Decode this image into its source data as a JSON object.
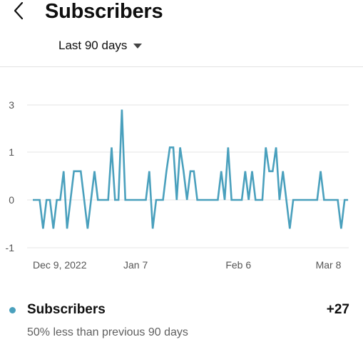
{
  "header": {
    "title": "Subscribers"
  },
  "range_select": {
    "label": "Last 90 days"
  },
  "summary": {
    "metric_name": "Subscribers",
    "total": "+27",
    "comparison": "50% less than previous 90 days"
  },
  "colors": {
    "series": "#4aa0bd",
    "grid": "#e5e5e5",
    "axis_text": "#555555"
  },
  "icons": {
    "back": "chevron-left-icon",
    "dropdown": "caret-down-icon"
  },
  "chart_data": {
    "type": "line",
    "title": "",
    "xlabel": "",
    "ylabel": "",
    "ylim": [
      -1,
      3
    ],
    "y_ticks": [
      3,
      1,
      0,
      -1
    ],
    "x_ticks": [
      "Dec 9, 2022",
      "Jan 7",
      "Feb 6",
      "Mar 8"
    ],
    "x_tick_index": [
      0,
      30,
      60,
      90
    ],
    "grid": true,
    "legend": "bottom",
    "series": [
      {
        "name": "Subscribers",
        "values": [
          0,
          0,
          0,
          -0.6,
          0,
          0,
          -0.6,
          0,
          0,
          0.6,
          -0.6,
          0,
          0.6,
          0.6,
          0.6,
          0,
          -0.6,
          0,
          0.6,
          0,
          0,
          0,
          0,
          1.2,
          0,
          0,
          2.8,
          0,
          0,
          0,
          0,
          0,
          0,
          0,
          0.6,
          -0.6,
          0,
          0,
          0,
          0.6,
          1.2,
          1.2,
          0,
          1.2,
          0.6,
          0,
          0.6,
          0.6,
          0,
          0,
          0,
          0,
          0,
          0,
          0,
          0.6,
          0,
          1.2,
          0,
          0,
          0,
          0,
          0.6,
          0,
          0.6,
          0,
          0,
          0,
          1.2,
          0.6,
          0.6,
          1.2,
          0,
          0.6,
          0,
          -0.6,
          0,
          0,
          0,
          0,
          0,
          0,
          0,
          0,
          0.6,
          0,
          0,
          0,
          0,
          0,
          -0.6,
          0,
          0
        ]
      }
    ]
  }
}
